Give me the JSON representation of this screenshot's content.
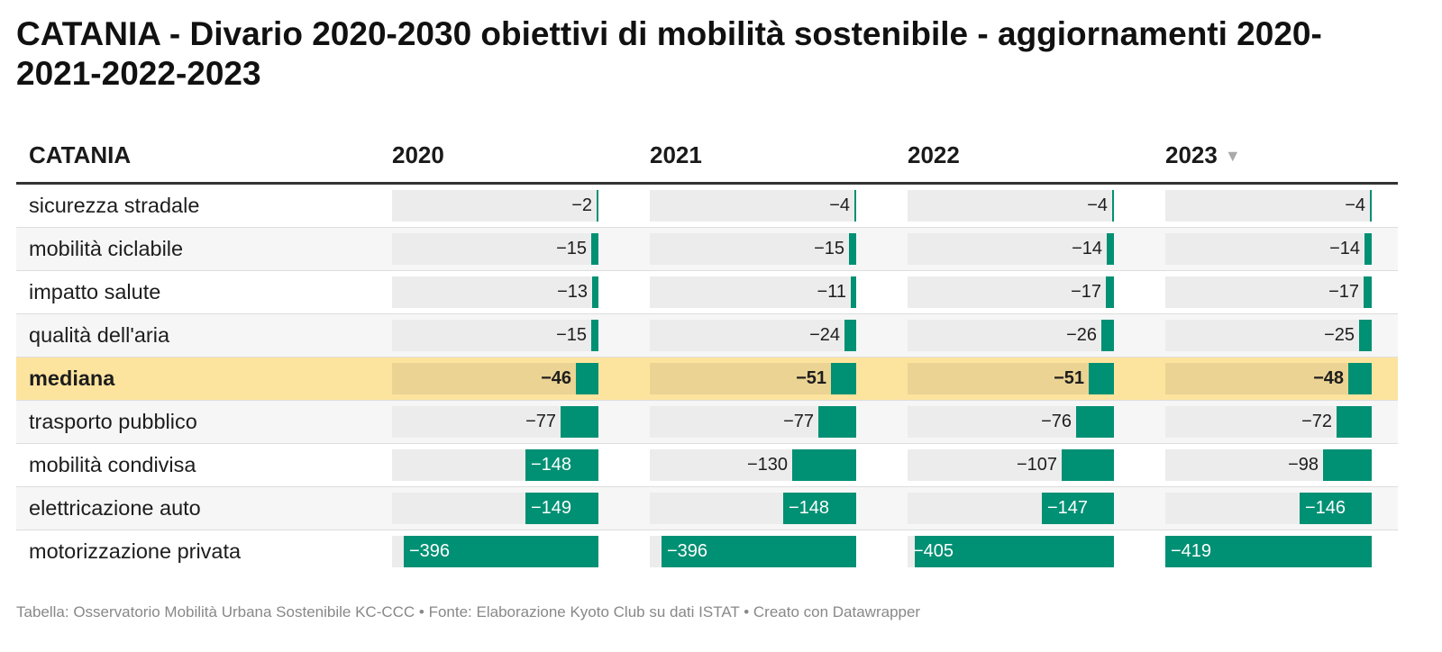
{
  "title": "CATANIA - Divario 2020-2030 obiettivi di mobilità sostenibile - aggiornamenti 2020-2021-2022-2023",
  "colors": {
    "bar": "#009073",
    "bar_background": "#ececec",
    "highlight_row": "#fde49e",
    "highlight_bar_background": "#ebd393"
  },
  "icons": {
    "sort": "sort-descending-icon"
  },
  "header": {
    "label_column": "CATANIA",
    "sort_arrow": "▼"
  },
  "chart_data": {
    "type": "table",
    "columns": [
      "2020",
      "2021",
      "2022",
      "2023"
    ],
    "sorted_by": "2023",
    "highlight_row": "mediana",
    "scale_max": 419,
    "rows": [
      {
        "label": "sicurezza stradale",
        "values": [
          -2,
          -4,
          -4,
          -4
        ]
      },
      {
        "label": "mobilità ciclabile",
        "values": [
          -15,
          -15,
          -14,
          -14
        ]
      },
      {
        "label": "impatto salute",
        "values": [
          -13,
          -11,
          -17,
          -17
        ]
      },
      {
        "label": "qualità dell'aria",
        "values": [
          -15,
          -24,
          -26,
          -25
        ]
      },
      {
        "label": "mediana",
        "values": [
          -46,
          -51,
          -51,
          -48
        ]
      },
      {
        "label": "trasporto pubblico",
        "values": [
          -77,
          -77,
          -76,
          -72
        ]
      },
      {
        "label": "mobilità condivisa",
        "values": [
          -148,
          -130,
          -107,
          -98
        ]
      },
      {
        "label": "elettricazione auto",
        "values": [
          -149,
          -148,
          -147,
          -146
        ]
      },
      {
        "label": "motorizzazione privata",
        "values": [
          -396,
          -396,
          -405,
          -419
        ]
      }
    ]
  },
  "footer": "Tabella: Osservatorio Mobilità Urbana Sostenibile KC-CCC • Fonte: Elaborazione Kyoto Club su dati ISTAT • Creato con Datawrapper"
}
